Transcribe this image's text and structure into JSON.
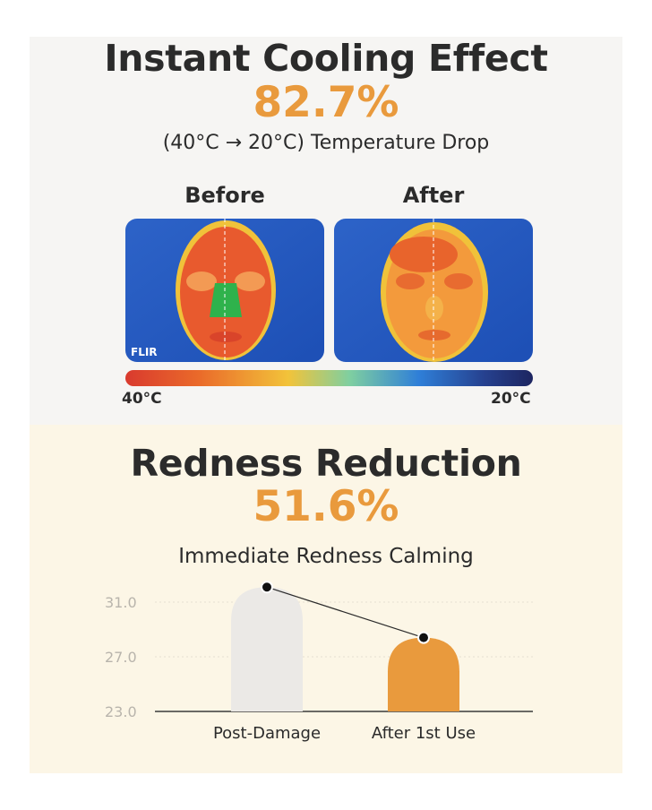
{
  "cooling": {
    "title": "Instant Cooling Effect",
    "percent": "82.7%",
    "subtitle": "(40°C → 20°C) Temperature Drop",
    "before_label": "Before",
    "after_label": "After",
    "watermark": "FLIR",
    "scale_min_label": "40°C",
    "scale_max_label": "20°C"
  },
  "redness": {
    "title": "Redness Reduction",
    "percent": "51.6%",
    "subtitle": "Immediate Redness Calming"
  },
  "colors": {
    "accent": "#e99a3d",
    "grey_bar": "#ebe9e6",
    "text": "#2b2b2b"
  },
  "chart_data": {
    "type": "bar",
    "title": "Immediate Redness Calming",
    "categories": [
      "Post-Damage",
      "After 1st Use"
    ],
    "values": [
      32.1,
      28.4
    ],
    "ylim": [
      23.0,
      31.0
    ],
    "yticks": [
      "23.0",
      "27.0",
      "31.0"
    ],
    "bar_colors": [
      "#ebe9e6",
      "#e99a3d"
    ],
    "grid": true,
    "connecting_line": true
  }
}
